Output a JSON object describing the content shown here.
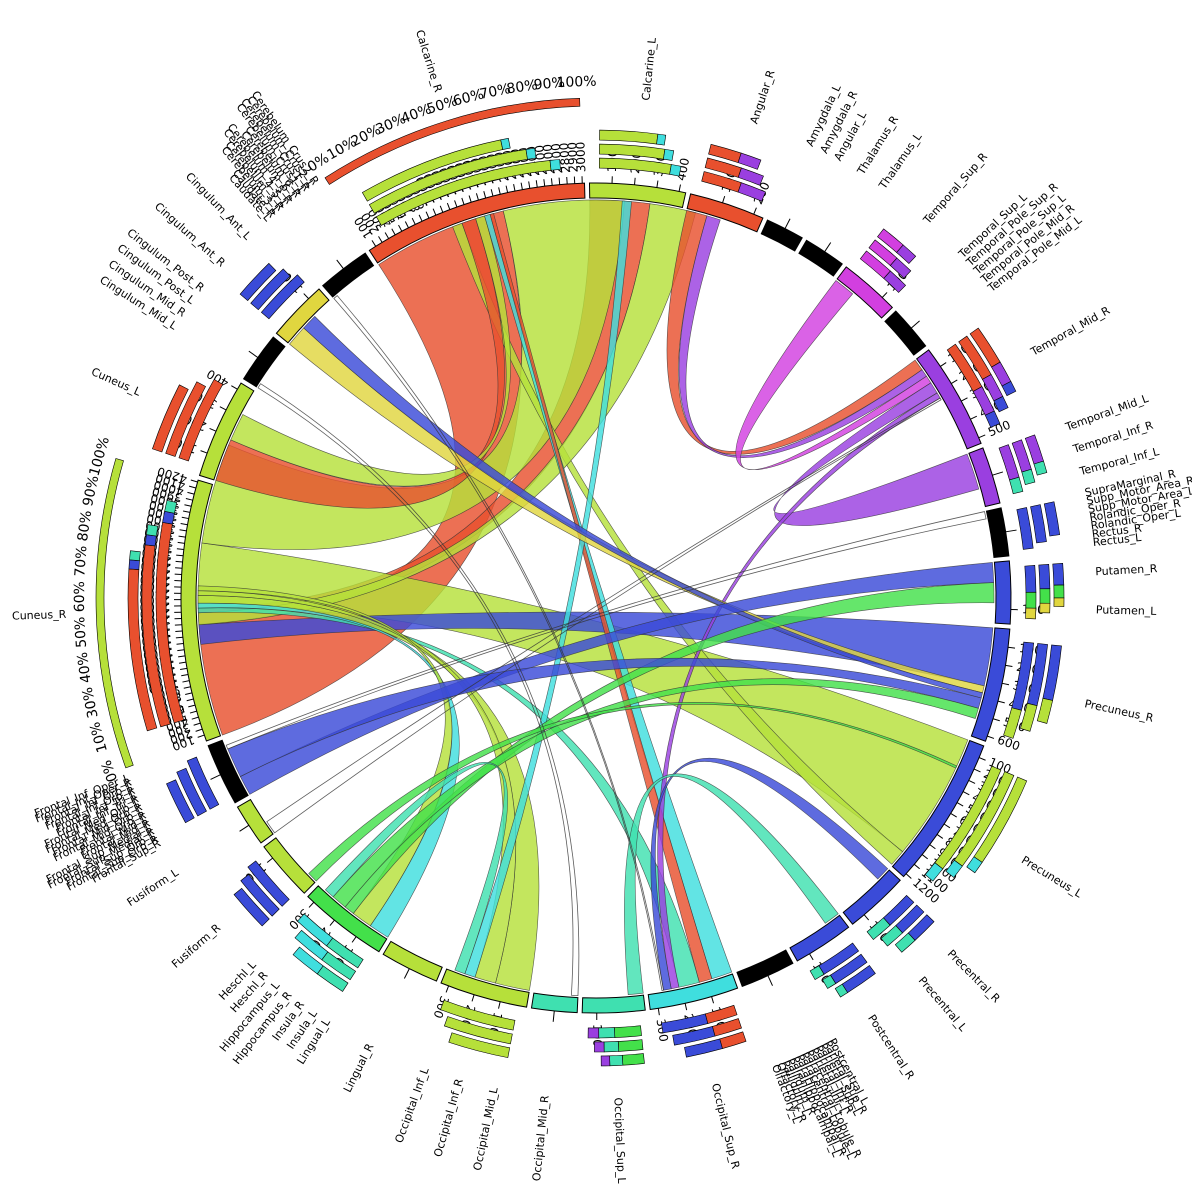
{
  "colors": {
    "red": "#e8502e",
    "lime": "#b6e03a",
    "blue": "#3a4bd8",
    "cyan": "#3fdede",
    "purple": "#9a3fe0",
    "magenta": "#d23fe0",
    "teal": "#3fe0b0",
    "green": "#43e04a",
    "yellow": "#e0d63f",
    "black": "#000000"
  },
  "chart_data": {
    "type": "chord",
    "regions": [
      {
        "name": "Calcarine_L",
        "color": "lime",
        "size": 400,
        "ticks": [
          "100",
          "200",
          "300",
          "400"
        ],
        "composition": [
          [
            "lime",
            0.88
          ],
          [
            "cyan",
            0.12
          ]
        ],
        "labels": [
          "Calcarine_L"
        ]
      },
      {
        "name": "Angular_R",
        "color": "red",
        "size": 210,
        "ticks": [
          "100",
          "200"
        ],
        "composition": [
          [
            "red",
            0.6
          ],
          [
            "purple",
            0.4
          ]
        ],
        "labels": [
          "Angular_R"
        ]
      },
      {
        "name": "Amygdala_L",
        "color": "black",
        "size": 20,
        "ticks": [],
        "composition": [],
        "labels": [
          "Amygdala_L",
          "Amygdala_R",
          "Angular_L"
        ]
      },
      {
        "name": "Thalamus",
        "color": "black",
        "size": 30,
        "ticks": [],
        "composition": [],
        "labels": [
          "Thalamus_R",
          "Thalamus_L"
        ]
      },
      {
        "name": "Temporal_Sup_R",
        "color": "magenta",
        "size": 110,
        "ticks": [
          "100"
        ],
        "composition": [
          [
            "magenta",
            0.6
          ],
          [
            "purple",
            0.4
          ]
        ],
        "labels": [
          "Temporal_Sup_R"
        ]
      },
      {
        "name": "Temporal_Pole",
        "color": "black",
        "size": 40,
        "ticks": [],
        "composition": [],
        "labels": [
          "Temporal_Sup_L",
          "Temporal_Pole_Sup_R",
          "Temporal_Pole_Sup_L",
          "Temporal_Pole_Mid_R",
          "Temporal_Pole_Mid_L"
        ]
      },
      {
        "name": "Temporal_Mid_R",
        "color": "purple",
        "size": 520,
        "ticks": [
          "100",
          "200",
          "300",
          "400",
          "500"
        ],
        "composition": [
          [
            "red",
            0.55
          ],
          [
            "purple",
            0.3
          ],
          [
            "blue",
            0.15
          ]
        ],
        "labels": [
          "Temporal_Mid_R"
        ]
      },
      {
        "name": "Temporal_Mid_L",
        "color": "purple",
        "size": 90,
        "ticks": [],
        "composition": [
          [
            "purple",
            0.7
          ],
          [
            "teal",
            0.3
          ]
        ],
        "labels": [
          "Temporal_Mid_L",
          "Temporal_Inf_R",
          "Temporal_Inf_L"
        ]
      },
      {
        "name": "SupraMarginal",
        "color": "black",
        "size": 50,
        "ticks": [],
        "composition": [
          [
            "blue",
            1.0
          ]
        ],
        "labels": [
          "SupraMarginal_R",
          "Supp_Motor_Area_R",
          "Supp_Motor_Area_L",
          "Rolandic_Oper_R",
          "Rolandic_Oper_L",
          "Rectus_R",
          "Rectus_L"
        ]
      },
      {
        "name": "Putamen_R",
        "color": "blue",
        "size": 120,
        "ticks": [
          "100"
        ],
        "composition": [
          [
            "blue",
            0.5
          ],
          [
            "green",
            0.3
          ],
          [
            "yellow",
            0.2
          ]
        ],
        "labels": [
          "Putamen_R",
          "Putamen_L"
        ]
      },
      {
        "name": "Precuneus_R",
        "color": "blue",
        "size": 620,
        "ticks": [
          "100",
          "200",
          "300",
          "400",
          "500",
          "600"
        ],
        "composition": [
          [
            "blue",
            0.7
          ],
          [
            "lime",
            0.3
          ]
        ],
        "labels": [
          "Precuneus_R"
        ]
      },
      {
        "name": "Precuneus_L",
        "color": "blue",
        "size": 1250,
        "ticks": [
          "100",
          "200",
          "300",
          "400",
          "500",
          "600",
          "700",
          "800",
          "900",
          "1000",
          "1100",
          "1200"
        ],
        "composition": [
          [
            "lime",
            0.88
          ],
          [
            "cyan",
            0.12
          ]
        ],
        "labels": [
          "Precuneus_L"
        ]
      },
      {
        "name": "Precentral_R",
        "color": "blue",
        "size": 130,
        "ticks": [
          "100"
        ],
        "composition": [
          [
            "blue",
            0.6
          ],
          [
            "teal",
            0.4
          ]
        ],
        "labels": [
          "Precentral_R",
          "Precentral_L"
        ]
      },
      {
        "name": "Postcentral_R",
        "color": "blue",
        "size": 110,
        "ticks": [
          "100"
        ],
        "composition": [
          [
            "blue",
            0.8
          ],
          [
            "teal",
            0.2
          ]
        ],
        "labels": [
          "Postcentral_R"
        ]
      },
      {
        "name": "Parietal",
        "color": "black",
        "size": 80,
        "ticks": [],
        "composition": [],
        "labels": [
          "Postcentral_L",
          "Parietal_Sup_R",
          "Parietal_Sup_L",
          "Parietal_Inf_R",
          "Parietal_Inf_L",
          "Paracentral_Lobule_R",
          "Paracentral_Lobule_L",
          "ParaHippocampal_R",
          "ParaHippocampal_L",
          "Pallidum_R",
          "Pallidum_L",
          "Olfactory_R",
          "Olfactory_L"
        ]
      },
      {
        "name": "Occipital_Sup_R",
        "color": "cyan",
        "size": 330,
        "ticks": [
          "100",
          "200",
          "300"
        ],
        "composition": [
          [
            "red",
            0.4
          ],
          [
            "blue",
            0.6
          ]
        ],
        "labels": [
          "Occipital_Sup_R"
        ]
      },
      {
        "name": "Occipital_Sup_L",
        "color": "teal",
        "size": 120,
        "ticks": [
          "100"
        ],
        "composition": [
          [
            "green",
            0.5
          ],
          [
            "teal",
            0.3
          ],
          [
            "purple",
            0.2
          ]
        ],
        "labels": [
          "Occipital_Sup_L"
        ]
      },
      {
        "name": "Occipital_Mid_R",
        "color": "teal",
        "size": 40,
        "ticks": [],
        "composition": [],
        "labels": [
          "Occipital_Mid_R"
        ]
      },
      {
        "name": "Occipital_Mid_L",
        "color": "lime",
        "size": 320,
        "ticks": [
          "100",
          "200",
          "300"
        ],
        "composition": [
          [
            "lime",
            1.0
          ]
        ],
        "labels": [
          "Occipital_Mid_L",
          "Occipital_Inf_R",
          "Occipital_Inf_L"
        ]
      },
      {
        "name": "Lingual_R",
        "color": "lime",
        "size": 100,
        "ticks": [],
        "composition": [],
        "labels": [
          "Lingual_R"
        ]
      },
      {
        "name": "Lingual_L",
        "color": "green",
        "size": 330,
        "ticks": [
          "100",
          "200",
          "300"
        ],
        "composition": [
          [
            "teal",
            0.5
          ],
          [
            "cyan",
            0.5
          ]
        ],
        "labels": [
          "Lingual_L",
          "Insula_L",
          "Insula_R",
          "Hippocampus_R",
          "Hippocampus_L",
          "Heschl_R",
          "Heschl_L"
        ]
      },
      {
        "name": "Fusiform_R",
        "color": "lime",
        "size": 110,
        "ticks": [
          "100"
        ],
        "composition": [
          [
            "blue",
            1.0
          ]
        ],
        "labels": [
          "Fusiform_R"
        ]
      },
      {
        "name": "Fusiform_L",
        "color": "lime",
        "size": 30,
        "ticks": [],
        "composition": [],
        "labels": [
          "Fusiform_L"
        ]
      },
      {
        "name": "Frontal_Sup_R",
        "color": "black",
        "size": 120,
        "ticks": [],
        "composition": [
          [
            "blue",
            1.0
          ]
        ],
        "labels": [
          "Frontal_Sup_R",
          "Frontal_Sup_Orb_R",
          "Frontal_Sup_Orb_L",
          "Frontal_Sup_Medial_R",
          "Frontal_Sup_Medial_L",
          "Frontal_Mid_R",
          "Frontal_Mid_L",
          "Frontal_Mid_Orb_R",
          "Frontal_Mid_Orb_L",
          "Frontal_Med_Orb_R",
          "Frontal_Med_Orb_L",
          "Frontal_Inf_Tri_R",
          "Frontal_Inf_Tri_L",
          "Frontal_Inf_Orb_R",
          "Frontal_Inf_Orb_L",
          "Frontal_Inf_Oper_R",
          "Frontal_Inf_Oper_L"
        ]
      },
      {
        "name": "Cuneus_R",
        "color": "lime",
        "size": 4250,
        "ticks": [
          "100",
          "200",
          "300",
          "400",
          "500",
          "600",
          "700",
          "800",
          "900",
          "1000",
          "1100",
          "1200",
          "1300",
          "1400",
          "1500",
          "1600",
          "1700",
          "1800",
          "1900",
          "2000",
          "2100",
          "2200",
          "2300",
          "2400",
          "2500",
          "2600",
          "2700",
          "2800",
          "2900",
          "3000",
          "3100",
          "3200",
          "3300",
          "3400",
          "3500",
          "3600",
          "3700",
          "3800",
          "3900",
          "4000",
          "4100",
          "4200"
        ],
        "composition": [
          [
            "red",
            0.9
          ],
          [
            "blue",
            0.05
          ],
          [
            "teal",
            0.05
          ]
        ],
        "labels": [
          "Cuneus_R"
        ],
        "percent_ticks": [
          "0%",
          "10%",
          "30%",
          "40%",
          "50%",
          "60%",
          "70%",
          "80%",
          "90%",
          "100%"
        ]
      },
      {
        "name": "Cuneus_L",
        "color": "lime",
        "size": 450,
        "ticks": [
          "100",
          "200",
          "300",
          "400"
        ],
        "composition": [
          [
            "red",
            1.0
          ]
        ],
        "labels": [
          "Cuneus_L"
        ]
      },
      {
        "name": "Cingulum",
        "color": "black",
        "size": 60,
        "ticks": [],
        "composition": [],
        "labels": [
          "Cingulum_Mid_L",
          "Cingulum_Mid_R",
          "Cingulum_Post_L",
          "Cingulum_Post_R"
        ]
      },
      {
        "name": "Cingulum_Ant_R",
        "color": "yellow",
        "size": 110,
        "ticks": [
          "100"
        ],
        "composition": [
          [
            "blue",
            1.0
          ]
        ],
        "labels": [
          "Cingulum_Ant_R",
          "Cingulum_Ant_L"
        ]
      },
      {
        "name": "Cerebelum",
        "color": "black",
        "size": 70,
        "ticks": [],
        "composition": [],
        "labels": [
          "Caudate_L",
          "Caudate_R",
          "Cerebelum_3_L",
          "Cerebelum_3_R",
          "Cerebelum_4_5_L",
          "Cerebelum_4_5_R",
          "Cerebelum_6_L",
          "Cerebelum_6_R",
          "Cerebelum_Crus1_L",
          "Cerebelum_Crus1_R",
          "Cerebelum_Crus2_L",
          "Cerebelum_Crus2_R"
        ]
      },
      {
        "name": "Calcarine_R",
        "color": "red",
        "size": 3050,
        "ticks": [
          "100",
          "200",
          "300",
          "400",
          "500",
          "600",
          "700",
          "800",
          "900",
          "1000",
          "1100",
          "1200",
          "1300",
          "1400",
          "1500",
          "1600",
          "1700",
          "1800",
          "1900",
          "2000",
          "2100",
          "2200",
          "2300",
          "2400",
          "2500",
          "2600",
          "2700",
          "2800",
          "2900",
          "3000"
        ],
        "composition": [
          [
            "lime",
            0.95
          ],
          [
            "cyan",
            0.05
          ]
        ],
        "labels": [
          "Calcarine_R"
        ],
        "percent_ticks": [
          "0%",
          "10%",
          "20%",
          "30%",
          "40%",
          "50%",
          "60%",
          "70%",
          "80%",
          "90%",
          "100%"
        ]
      }
    ],
    "links": [
      {
        "from": "Cuneus_R",
        "to": "Calcarine_R",
        "value": 1900,
        "color": "red"
      },
      {
        "from": "Cuneus_R",
        "to": "Calcarine_L",
        "value": 260,
        "color": "red"
      },
      {
        "from": "Cuneus_R",
        "to": "Precuneus_L",
        "value": 1100,
        "color": "lime"
      },
      {
        "from": "Calcarine_R",
        "to": "Cuneus_R",
        "value": 1700,
        "color": "lime"
      },
      {
        "from": "Calcarine_R",
        "to": "Precuneus_L",
        "value": 140,
        "color": "lime"
      },
      {
        "from": "Cuneus_R",
        "to": "Precuneus_R",
        "value": 330,
        "color": "blue"
      },
      {
        "from": "Cuneus_L",
        "to": "Calcarine_R",
        "value": 200,
        "color": "red"
      },
      {
        "from": "Cuneus_L",
        "to": "Calcarine_R",
        "value": 130,
        "color": "lime"
      },
      {
        "from": "Calcarine_L",
        "to": "Cuneus_R",
        "value": 200,
        "color": "lime"
      },
      {
        "from": "Calcarine_R",
        "to": "Occipital_Sup_R",
        "value": 80,
        "color": "cyan"
      },
      {
        "from": "Calcarine_R",
        "to": "Occipital_Sup_R",
        "value": 50,
        "color": "red"
      },
      {
        "from": "Cuneus_R",
        "to": "Occipital_Sup_R",
        "value": 80,
        "color": "teal"
      },
      {
        "from": "Cuneus_R",
        "to": "Lingual_L",
        "value": 80,
        "color": "cyan"
      },
      {
        "from": "Cuneus_R",
        "to": "Occipital_Mid_L",
        "value": 130,
        "color": "lime"
      },
      {
        "from": "Cuneus_R",
        "to": "Occipital_Mid_L",
        "value": 80,
        "color": "lime"
      },
      {
        "from": "Cuneus_R",
        "to": "Lingual_L",
        "value": 80,
        "color": "lime"
      },
      {
        "from": "Calcarine_L",
        "to": "Occipital_Mid_L",
        "value": 40,
        "color": "cyan"
      },
      {
        "from": "Angular_R",
        "to": "Temporal_Mid_R",
        "value": 60,
        "color": "red"
      },
      {
        "from": "Angular_R",
        "to": "Temporal_Mid_R",
        "value": 40,
        "color": "purple"
      },
      {
        "from": "Temporal_Sup_R",
        "to": "Temporal_Mid_R",
        "value": 40,
        "color": "magenta"
      },
      {
        "from": "Temporal_Mid_R",
        "to": "Temporal_Mid_L",
        "value": 60,
        "color": "purple"
      },
      {
        "from": "Temporal_Mid_R",
        "to": "Occipital_Sup_R",
        "value": 30,
        "color": "purple"
      },
      {
        "from": "Precuneus_R",
        "to": "Cingulum_Ant_R",
        "value": 40,
        "color": "yellow"
      },
      {
        "from": "Precuneus_R",
        "to": "Cingulum_Ant_R",
        "value": 30,
        "color": "blue"
      },
      {
        "from": "Putamen_R",
        "to": "Frontal_Sup_R",
        "value": 40,
        "color": "blue"
      },
      {
        "from": "Putamen_R",
        "to": "Lingual_L",
        "value": 40,
        "color": "green"
      },
      {
        "from": "Precuneus_R",
        "to": "Frontal_Sup_R",
        "value": 60,
        "color": "blue"
      },
      {
        "from": "Precuneus_R",
        "to": "Lingual_L",
        "value": 60,
        "color": "green"
      },
      {
        "from": "Precentral_R",
        "to": "Occipital_Sup_R",
        "value": 30,
        "color": "blue"
      },
      {
        "from": "Postcentral_R",
        "to": "Occipital_Sup_L",
        "value": 30,
        "color": "teal"
      },
      {
        "from": "Lingual_L",
        "to": "Occipital_Mid_L",
        "value": 40,
        "color": "teal"
      },
      {
        "from": "Fusiform_R",
        "to": "Precuneus_L",
        "value": 20,
        "color": "green"
      },
      {
        "from": "Temporal_Mid_R",
        "to": "Fusiform_L",
        "value": 10,
        "color": "black"
      },
      {
        "from": "SupraMarginal",
        "to": "Frontal_Sup_R",
        "value": 8,
        "color": "black"
      },
      {
        "from": "Cerebelum",
        "to": "Occipital_Sup_R",
        "value": 6,
        "color": "black"
      },
      {
        "from": "Cingulum",
        "to": "Occipital_Mid_R",
        "value": 6,
        "color": "black"
      }
    ]
  }
}
